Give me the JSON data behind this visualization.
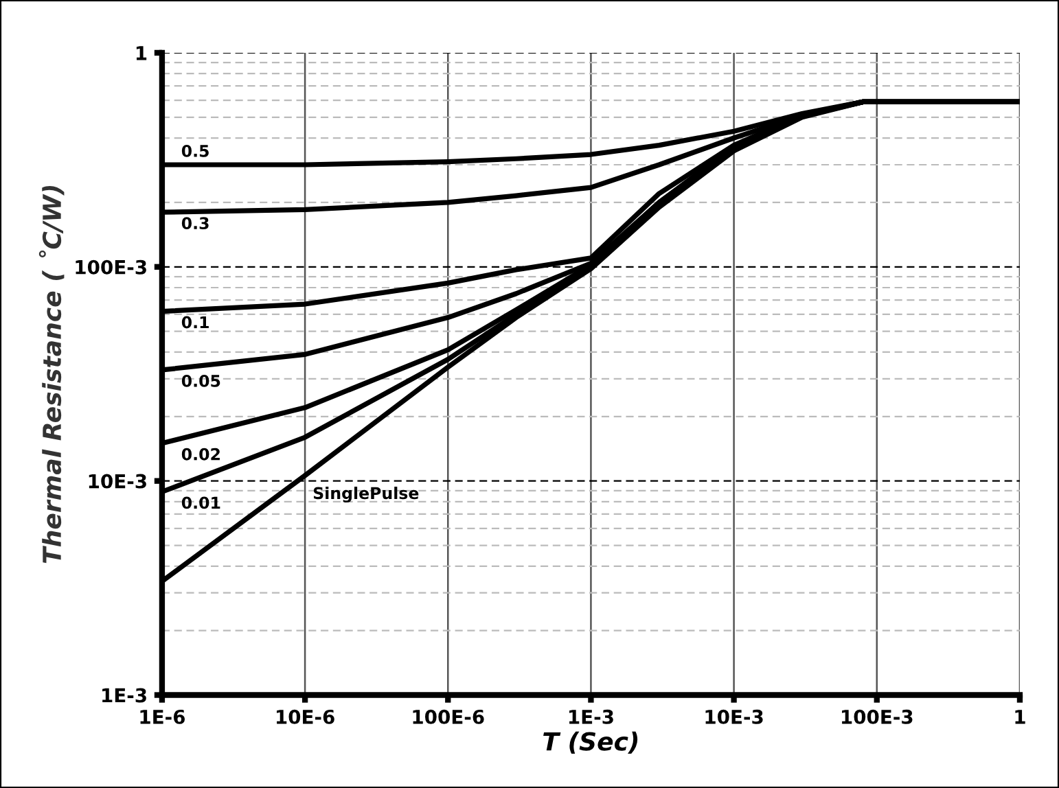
{
  "chart_data": {
    "type": "line",
    "xlabel": "T (Sec)",
    "ylabel": "Thermal Resistance ( ˚C/W)",
    "log": "xy",
    "grid": true,
    "legend": false,
    "marker": "none",
    "line_style": "solid",
    "x": [
      1e-06,
      1e-05,
      0.0001,
      0.0003,
      0.001,
      0.003,
      0.01,
      0.03,
      0.08,
      1
    ],
    "xlim": [
      1e-06,
      1
    ],
    "ylim": [
      0.001,
      1
    ],
    "xticks": [
      {
        "value": 1e-06,
        "label": "1E-6"
      },
      {
        "value": 1e-05,
        "label": "10E-6"
      },
      {
        "value": 0.0001,
        "label": "100E-6"
      },
      {
        "value": 0.001,
        "label": "1E-3"
      },
      {
        "value": 0.01,
        "label": "10E-3"
      },
      {
        "value": 0.1,
        "label": "100E-3"
      },
      1
    ],
    "yticks": [
      {
        "value": 0.001,
        "label": "1E-3"
      },
      {
        "value": 0.01,
        "label": "10E-3"
      },
      {
        "value": 0.1,
        "label": "100E-3"
      },
      1
    ],
    "series": [
      {
        "name": "0.5",
        "color": "#000000",
        "values": [
          0.3,
          0.3,
          0.31,
          0.32,
          0.335,
          0.37,
          0.43,
          0.52,
          0.59,
          0.59
        ]
      },
      {
        "name": "0.3",
        "color": "#000000",
        "values": [
          0.18,
          0.185,
          0.2,
          0.215,
          0.235,
          0.3,
          0.4,
          0.51,
          0.59,
          0.59
        ]
      },
      {
        "name": "0.1",
        "color": "#000000",
        "values": [
          0.062,
          0.067,
          0.084,
          0.097,
          0.11,
          0.22,
          0.37,
          0.51,
          0.59,
          0.59
        ]
      },
      {
        "name": "0.05",
        "color": "#000000",
        "values": [
          0.033,
          0.039,
          0.058,
          0.075,
          0.104,
          0.2,
          0.365,
          0.51,
          0.59,
          0.59
        ]
      },
      {
        "name": "0.02",
        "color": "#000000",
        "values": [
          0.015,
          0.022,
          0.041,
          0.063,
          0.102,
          0.2,
          0.36,
          0.51,
          0.59,
          0.59
        ]
      },
      {
        "name": "0.01",
        "color": "#000000",
        "values": [
          0.0089,
          0.016,
          0.037,
          0.06,
          0.1,
          0.195,
          0.355,
          0.505,
          0.59,
          0.59
        ]
      },
      {
        "name": "SinglePulse",
        "color": "#000000",
        "values": [
          0.0034,
          0.0106,
          0.034,
          0.058,
          0.098,
          0.19,
          0.348,
          0.5,
          0.59,
          0.59
        ]
      }
    ]
  }
}
